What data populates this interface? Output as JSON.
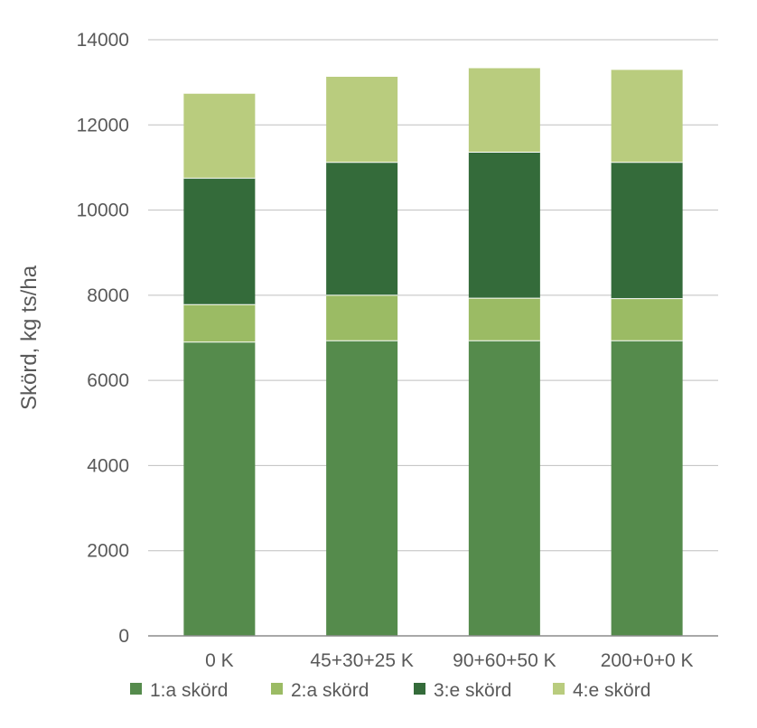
{
  "chart_data": {
    "type": "bar",
    "stacked": true,
    "categories": [
      "0 K",
      "45+30+25 K",
      "90+60+50 K",
      "200+0+0 K"
    ],
    "series": [
      {
        "name": "1:a skörd",
        "color": "#558b4c",
        "values": [
          6900,
          6930,
          6930,
          6930
        ]
      },
      {
        "name": "2:a skörd",
        "color": "#9bbb64",
        "values": [
          880,
          1070,
          1000,
          990
        ]
      },
      {
        "name": "3:e skörd",
        "color": "#346b3a",
        "values": [
          2970,
          3120,
          3430,
          3200
        ]
      },
      {
        "name": "4:e skörd",
        "color": "#b9cc7e",
        "values": [
          1990,
          2020,
          1980,
          2180
        ]
      }
    ],
    "title": "",
    "xlabel": "",
    "ylabel": "Skörd, kg ts/ha",
    "ylim": [
      0,
      14000
    ],
    "yticks": [
      0,
      2000,
      4000,
      6000,
      8000,
      10000,
      12000,
      14000
    ],
    "grid": true,
    "legend_position": "bottom"
  }
}
